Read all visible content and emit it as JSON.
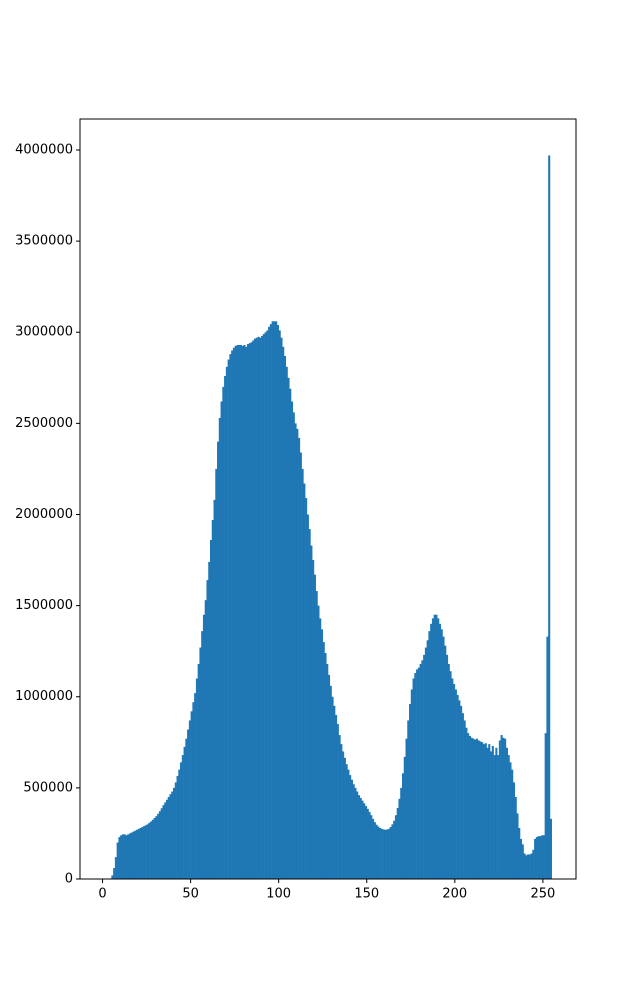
{
  "chart_data": {
    "type": "histogram",
    "color": "#1f77b4",
    "bins": [
      0,
      1,
      2,
      3,
      4,
      5,
      6,
      7,
      8,
      9,
      10,
      11,
      12,
      13,
      14,
      15,
      16,
      17,
      18,
      19,
      20,
      21,
      22,
      23,
      24,
      25,
      26,
      27,
      28,
      29,
      30,
      31,
      32,
      33,
      34,
      35,
      36,
      37,
      38,
      39,
      40,
      41,
      42,
      43,
      44,
      45,
      46,
      47,
      48,
      49,
      50,
      51,
      52,
      53,
      54,
      55,
      56,
      57,
      58,
      59,
      60,
      61,
      62,
      63,
      64,
      65,
      66,
      67,
      68,
      69,
      70,
      71,
      72,
      73,
      74,
      75,
      76,
      77,
      78,
      79,
      80,
      81,
      82,
      83,
      84,
      85,
      86,
      87,
      88,
      89,
      90,
      91,
      92,
      93,
      94,
      95,
      96,
      97,
      98,
      99,
      100,
      101,
      102,
      103,
      104,
      105,
      106,
      107,
      108,
      109,
      110,
      111,
      112,
      113,
      114,
      115,
      116,
      117,
      118,
      119,
      120,
      121,
      122,
      123,
      124,
      125,
      126,
      127,
      128,
      129,
      130,
      131,
      132,
      133,
      134,
      135,
      136,
      137,
      138,
      139,
      140,
      141,
      142,
      143,
      144,
      145,
      146,
      147,
      148,
      149,
      150,
      151,
      152,
      153,
      154,
      155,
      156,
      157,
      158,
      159,
      160,
      161,
      162,
      163,
      164,
      165,
      166,
      167,
      168,
      169,
      170,
      171,
      172,
      173,
      174,
      175,
      176,
      177,
      178,
      179,
      180,
      181,
      182,
      183,
      184,
      185,
      186,
      187,
      188,
      189,
      190,
      191,
      192,
      193,
      194,
      195,
      196,
      197,
      198,
      199,
      200,
      201,
      202,
      203,
      204,
      205,
      206,
      207,
      208,
      209,
      210,
      211,
      212,
      213,
      214,
      215,
      216,
      217,
      218,
      219,
      220,
      221,
      222,
      223,
      224,
      225,
      226,
      227,
      228,
      229,
      230,
      231,
      232,
      233,
      234,
      235,
      236,
      237,
      238,
      239,
      240,
      241,
      242,
      243,
      244,
      245,
      246,
      247,
      248,
      249,
      250,
      251,
      252,
      253,
      254,
      255,
      256
    ],
    "counts": [
      0,
      0,
      0,
      0,
      0,
      20000,
      60000,
      120000,
      200000,
      230000,
      240000,
      245000,
      245000,
      240000,
      245000,
      250000,
      255000,
      260000,
      265000,
      270000,
      275000,
      280000,
      285000,
      290000,
      295000,
      300000,
      308000,
      316000,
      325000,
      335000,
      345000,
      358000,
      372000,
      388000,
      405000,
      420000,
      435000,
      450000,
      465000,
      480000,
      500000,
      530000,
      565000,
      600000,
      640000,
      680000,
      725000,
      770000,
      820000,
      870000,
      920000,
      970000,
      1020000,
      1100000,
      1180000,
      1270000,
      1360000,
      1450000,
      1530000,
      1640000,
      1740000,
      1860000,
      1970000,
      2080000,
      2250000,
      2400000,
      2530000,
      2620000,
      2700000,
      2760000,
      2810000,
      2850000,
      2880000,
      2900000,
      2915000,
      2925000,
      2930000,
      2930000,
      2930000,
      2925000,
      2930000,
      2920000,
      2935000,
      2940000,
      2945000,
      2955000,
      2965000,
      2970000,
      2975000,
      2970000,
      2980000,
      2990000,
      3000000,
      3010000,
      3030000,
      3045000,
      3060000,
      3060000,
      3060000,
      3040000,
      3010000,
      2970000,
      2920000,
      2870000,
      2810000,
      2750000,
      2690000,
      2620000,
      2560000,
      2500000,
      2470000,
      2420000,
      2340000,
      2250000,
      2170000,
      2090000,
      2000000,
      1920000,
      1830000,
      1750000,
      1670000,
      1580000,
      1500000,
      1430000,
      1370000,
      1300000,
      1240000,
      1180000,
      1120000,
      1060000,
      1000000,
      950000,
      900000,
      850000,
      790000,
      740000,
      700000,
      665000,
      630000,
      600000,
      570000,
      545000,
      520000,
      500000,
      480000,
      460000,
      445000,
      430000,
      415000,
      400000,
      385000,
      368000,
      350000,
      330000,
      312000,
      298000,
      288000,
      280000,
      275000,
      272000,
      270000,
      272000,
      275000,
      285000,
      300000,
      320000,
      350000,
      390000,
      440000,
      500000,
      580000,
      670000,
      770000,
      870000,
      960000,
      1040000,
      1100000,
      1130000,
      1150000,
      1160000,
      1180000,
      1200000,
      1230000,
      1270000,
      1310000,
      1360000,
      1400000,
      1430000,
      1450000,
      1450000,
      1430000,
      1400000,
      1370000,
      1330000,
      1280000,
      1230000,
      1180000,
      1140000,
      1100000,
      1070000,
      1040000,
      1010000,
      980000,
      950000,
      910000,
      870000,
      830000,
      800000,
      785000,
      775000,
      770000,
      765000,
      770000,
      760000,
      755000,
      750000,
      740000,
      745000,
      720000,
      740000,
      700000,
      730000,
      680000,
      720000,
      680000,
      760000,
      790000,
      775000,
      770000,
      720000,
      680000,
      640000,
      600000,
      530000,
      450000,
      360000,
      280000,
      220000,
      190000,
      140000,
      130000,
      135000,
      135000,
      140000,
      160000,
      220000,
      230000,
      235000,
      235000,
      240000,
      240000,
      800000,
      1330000,
      3970000,
      330000,
      0
    ],
    "xlim": [
      -12.8,
      268.8
    ],
    "ylim": [
      0,
      4170000
    ],
    "xticks": [
      0,
      50,
      100,
      150,
      200,
      250
    ],
    "yticks": [
      0,
      500000,
      1000000,
      1500000,
      2000000,
      2500000,
      3000000,
      3500000,
      4000000
    ]
  }
}
